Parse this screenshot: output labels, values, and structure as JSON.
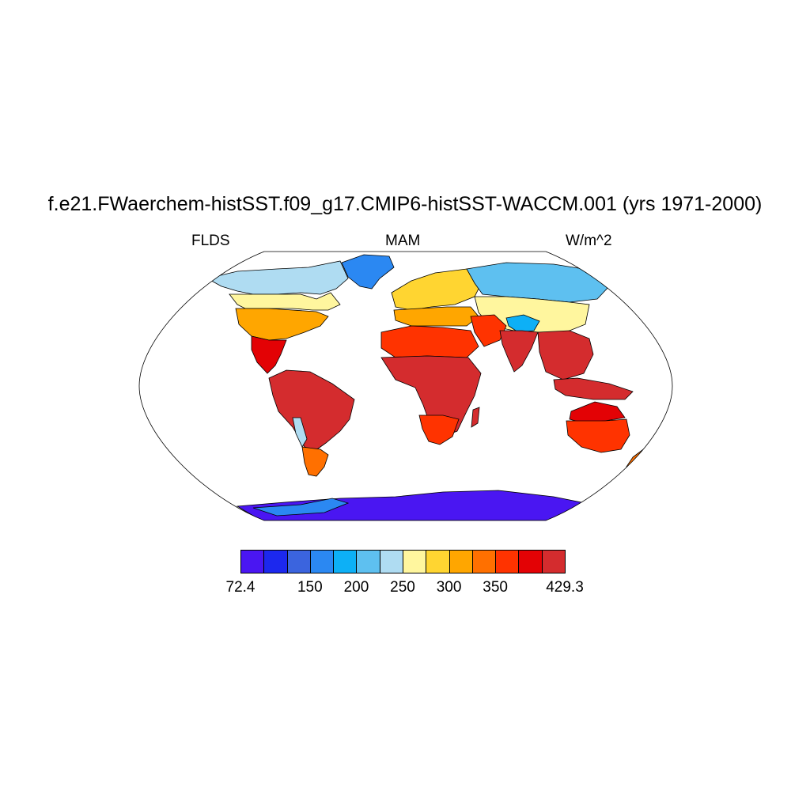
{
  "title": "f.e21.FWaerchem-histSST.f09_g17.CMIP6-histSST-WACCM.001 (yrs 1971-2000)",
  "left_string": "FLDS",
  "center_string": "MAM",
  "right_string": "W/m^2",
  "colorbar": {
    "colors": [
      "#4a16f2",
      "#1c28ee",
      "#3b64de",
      "#2b88f2",
      "#0db0f6",
      "#5ec0f0",
      "#afdcf2",
      "#fff69e",
      "#ffd531",
      "#ffa600",
      "#ff7000",
      "#ff3300",
      "#e30205",
      "#d42c2e"
    ],
    "labels": [
      {
        "text": "72.4",
        "index": 0
      },
      {
        "text": "150",
        "index": 3
      },
      {
        "text": "200",
        "index": 5
      },
      {
        "text": "250",
        "index": 7
      },
      {
        "text": "300",
        "index": 9
      },
      {
        "text": "350",
        "index": 11
      },
      {
        "text": "429.3",
        "index": 14
      }
    ]
  },
  "map": {
    "projection": "robinson",
    "land_fill_levels": {
      "north_america_arctic": 6,
      "greenland": 3,
      "canada": 7,
      "usa": 9,
      "mexico": 12,
      "south_america": 13,
      "patagonia": 10,
      "andes": 6,
      "europe": 8,
      "mediterranean": 9,
      "north_africa": 11,
      "africa": 13,
      "south_africa": 11,
      "siberia": 5,
      "central_asia": 7,
      "tibet": 4,
      "india": 13,
      "southeast_asia": 13,
      "australia": 11,
      "australia_north": 12,
      "antarctica": 0,
      "antarctic_peninsula": 3
    }
  }
}
